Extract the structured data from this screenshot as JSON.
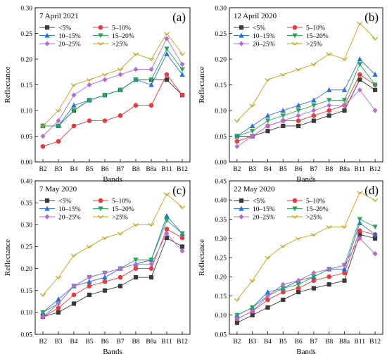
{
  "colors": {
    "lt5": "#3a3a3a",
    "5to10": "#e8393c",
    "10to15": "#2a6fd8",
    "15to20": "#2aa65c",
    "20to25": "#b46bd6",
    "gt25": "#c9a116"
  },
  "chart_data": [
    {
      "type": "line",
      "panel_label": "(a)",
      "title": "7 April 2021",
      "xlabel": "Bands",
      "ylabel": "Reflectance",
      "categories": [
        "B2",
        "B3",
        "B4",
        "B5",
        "B6",
        "B7",
        "B8",
        "B8a",
        "B11",
        "B12"
      ],
      "ylim": [
        0,
        0.3
      ],
      "yticks": [
        "0.00",
        "0.05",
        "0.10",
        "0.15",
        "0.20",
        "0.25",
        "0.30"
      ],
      "legend_position": "top-left",
      "series": [
        {
          "name": "<5%",
          "values": [
            0.07,
            0.07,
            0.1,
            0.12,
            0.13,
            0.14,
            0.16,
            0.16,
            0.16,
            0.13
          ]
        },
        {
          "name": "5–10%",
          "values": [
            0.03,
            0.04,
            0.07,
            0.08,
            0.08,
            0.09,
            0.11,
            0.11,
            0.17,
            0.13
          ]
        },
        {
          "name": "10–15%",
          "values": [
            0.07,
            0.07,
            0.11,
            0.12,
            0.13,
            0.14,
            0.16,
            0.15,
            0.21,
            0.17
          ]
        },
        {
          "name": "15–20%",
          "values": [
            0.07,
            0.07,
            0.1,
            0.12,
            0.13,
            0.14,
            0.16,
            0.16,
            0.22,
            0.18
          ]
        },
        {
          "name": "20–25%",
          "values": [
            0.05,
            0.08,
            0.13,
            0.15,
            0.16,
            0.17,
            0.18,
            0.18,
            0.24,
            0.19
          ]
        },
        {
          "name": ">25%",
          "values": [
            0.07,
            0.1,
            0.15,
            0.16,
            0.17,
            0.18,
            0.21,
            0.2,
            0.25,
            0.21
          ]
        }
      ]
    },
    {
      "type": "line",
      "panel_label": "(b)",
      "title": "12 April 2020",
      "xlabel": "Bands",
      "ylabel": "Reflectance",
      "categories": [
        "B2",
        "B3",
        "B4",
        "B5",
        "B6",
        "B7",
        "B8",
        "B8a",
        "B11",
        "B12"
      ],
      "ylim": [
        0,
        0.3
      ],
      "yticks": [
        "0.00",
        "0.05",
        "0.10",
        "0.15",
        "0.20",
        "0.25",
        "0.30"
      ],
      "legend_position": "top-left",
      "series": [
        {
          "name": "<5%",
          "values": [
            0.05,
            0.05,
            0.06,
            0.07,
            0.07,
            0.08,
            0.09,
            0.1,
            0.16,
            0.14
          ]
        },
        {
          "name": "5–10%",
          "values": [
            0.04,
            0.05,
            0.07,
            0.08,
            0.08,
            0.09,
            0.1,
            0.11,
            0.17,
            0.15
          ]
        },
        {
          "name": "10–15%",
          "values": [
            0.05,
            0.07,
            0.09,
            0.1,
            0.11,
            0.12,
            0.14,
            0.14,
            0.2,
            0.17
          ]
        },
        {
          "name": "15–20%",
          "values": [
            0.05,
            0.06,
            0.08,
            0.09,
            0.1,
            0.11,
            0.12,
            0.12,
            0.19,
            0.15
          ]
        },
        {
          "name": "20–25%",
          "values": [
            0.03,
            0.05,
            0.07,
            0.08,
            0.09,
            0.1,
            0.11,
            0.11,
            0.14,
            0.1
          ]
        },
        {
          "name": ">25%",
          "values": [
            0.08,
            0.11,
            0.16,
            0.17,
            0.18,
            0.19,
            0.21,
            0.2,
            0.27,
            0.24
          ]
        }
      ]
    },
    {
      "type": "line",
      "panel_label": "(c)",
      "title": "7 May 2020",
      "xlabel": "Bands",
      "ylabel": "Reflectance",
      "categories": [
        "B2",
        "B3",
        "B4",
        "B5",
        "B6",
        "B7",
        "B8",
        "B8a",
        "B11",
        "B12"
      ],
      "ylim": [
        0.05,
        0.4
      ],
      "yticks": [
        "0.05",
        "0.10",
        "0.15",
        "0.20",
        "0.25",
        "0.30",
        "0.35",
        "0.40"
      ],
      "legend_position": "top-left",
      "series": [
        {
          "name": "<5%",
          "values": [
            0.09,
            0.1,
            0.12,
            0.14,
            0.15,
            0.16,
            0.18,
            0.18,
            0.27,
            0.25
          ]
        },
        {
          "name": "5–10%",
          "values": [
            0.09,
            0.11,
            0.14,
            0.16,
            0.17,
            0.18,
            0.2,
            0.2,
            0.29,
            0.27
          ]
        },
        {
          "name": "10–15%",
          "values": [
            0.1,
            0.13,
            0.16,
            0.17,
            0.18,
            0.2,
            0.21,
            0.22,
            0.32,
            0.28
          ]
        },
        {
          "name": "15–20%",
          "values": [
            0.1,
            0.12,
            0.16,
            0.18,
            0.19,
            0.2,
            0.22,
            0.22,
            0.31,
            0.28
          ]
        },
        {
          "name": "20–25%",
          "values": [
            0.09,
            0.12,
            0.16,
            0.18,
            0.19,
            0.2,
            0.21,
            0.21,
            0.28,
            0.24
          ]
        },
        {
          "name": ">25%",
          "values": [
            0.14,
            0.18,
            0.23,
            0.25,
            0.27,
            0.28,
            0.3,
            0.3,
            0.37,
            0.34
          ]
        }
      ]
    },
    {
      "type": "line",
      "panel_label": "(d)",
      "title": "22 May 2020",
      "xlabel": "Bands",
      "ylabel": "Reflectance",
      "categories": [
        "B2",
        "B3",
        "B4",
        "B5",
        "B6",
        "B7",
        "B8",
        "B8a",
        "B11",
        "B12"
      ],
      "ylim": [
        0.05,
        0.45
      ],
      "yticks": [
        "0.05",
        "0.10",
        "0.15",
        "0.20",
        "0.25",
        "0.30",
        "0.35",
        "0.40",
        "0.45"
      ],
      "legend_position": "top-left",
      "series": [
        {
          "name": "<5%",
          "values": [
            0.08,
            0.1,
            0.12,
            0.14,
            0.16,
            0.17,
            0.18,
            0.19,
            0.31,
            0.3
          ]
        },
        {
          "name": "5–10%",
          "values": [
            0.09,
            0.11,
            0.14,
            0.16,
            0.17,
            0.19,
            0.2,
            0.21,
            0.32,
            0.31
          ]
        },
        {
          "name": "10–15%",
          "values": [
            0.1,
            0.12,
            0.16,
            0.17,
            0.19,
            0.2,
            0.22,
            0.22,
            0.34,
            0.31
          ]
        },
        {
          "name": "15–20%",
          "values": [
            0.1,
            0.12,
            0.15,
            0.17,
            0.18,
            0.2,
            0.22,
            0.23,
            0.35,
            0.33
          ]
        },
        {
          "name": "20–25%",
          "values": [
            0.09,
            0.11,
            0.15,
            0.18,
            0.19,
            0.21,
            0.22,
            0.23,
            0.3,
            0.26
          ]
        },
        {
          "name": ">25%",
          "values": [
            0.14,
            0.19,
            0.25,
            0.28,
            0.3,
            0.31,
            0.33,
            0.33,
            0.42,
            0.4
          ]
        }
      ]
    }
  ]
}
